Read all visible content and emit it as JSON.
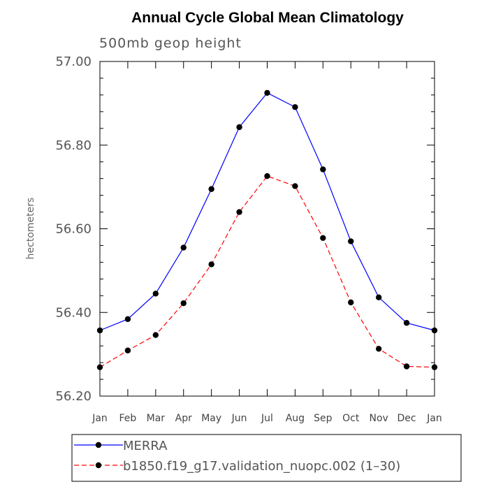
{
  "chart_data": {
    "type": "line",
    "title": "Annual Cycle Global Mean Climatology",
    "subtitle": "500mb geop height",
    "ylabel": "hectometers",
    "xlabel": "",
    "categories": [
      "Jan",
      "Feb",
      "Mar",
      "Apr",
      "May",
      "Jun",
      "Jul",
      "Aug",
      "Sep",
      "Oct",
      "Nov",
      "Dec",
      "Jan"
    ],
    "ylim": [
      56.2,
      57.0
    ],
    "yticks": [
      "56.20",
      "56.40",
      "56.60",
      "56.80",
      "57.00"
    ],
    "series": [
      {
        "name": "MERRA",
        "color": "#0000ff",
        "dash": "solid",
        "values": [
          56.357,
          56.384,
          56.445,
          56.555,
          56.695,
          56.843,
          56.925,
          56.891,
          56.742,
          56.57,
          56.436,
          56.375,
          56.357
        ]
      },
      {
        "name": "b1850.f19_g17.validation_nuopc.002 (1–30)",
        "color": "#ff0000",
        "dash": "dashed",
        "values": [
          56.269,
          56.309,
          56.346,
          56.422,
          56.515,
          56.64,
          56.726,
          56.702,
          56.578,
          56.424,
          56.313,
          56.271,
          56.269
        ]
      }
    ],
    "grid": false,
    "legend": "bottom"
  }
}
